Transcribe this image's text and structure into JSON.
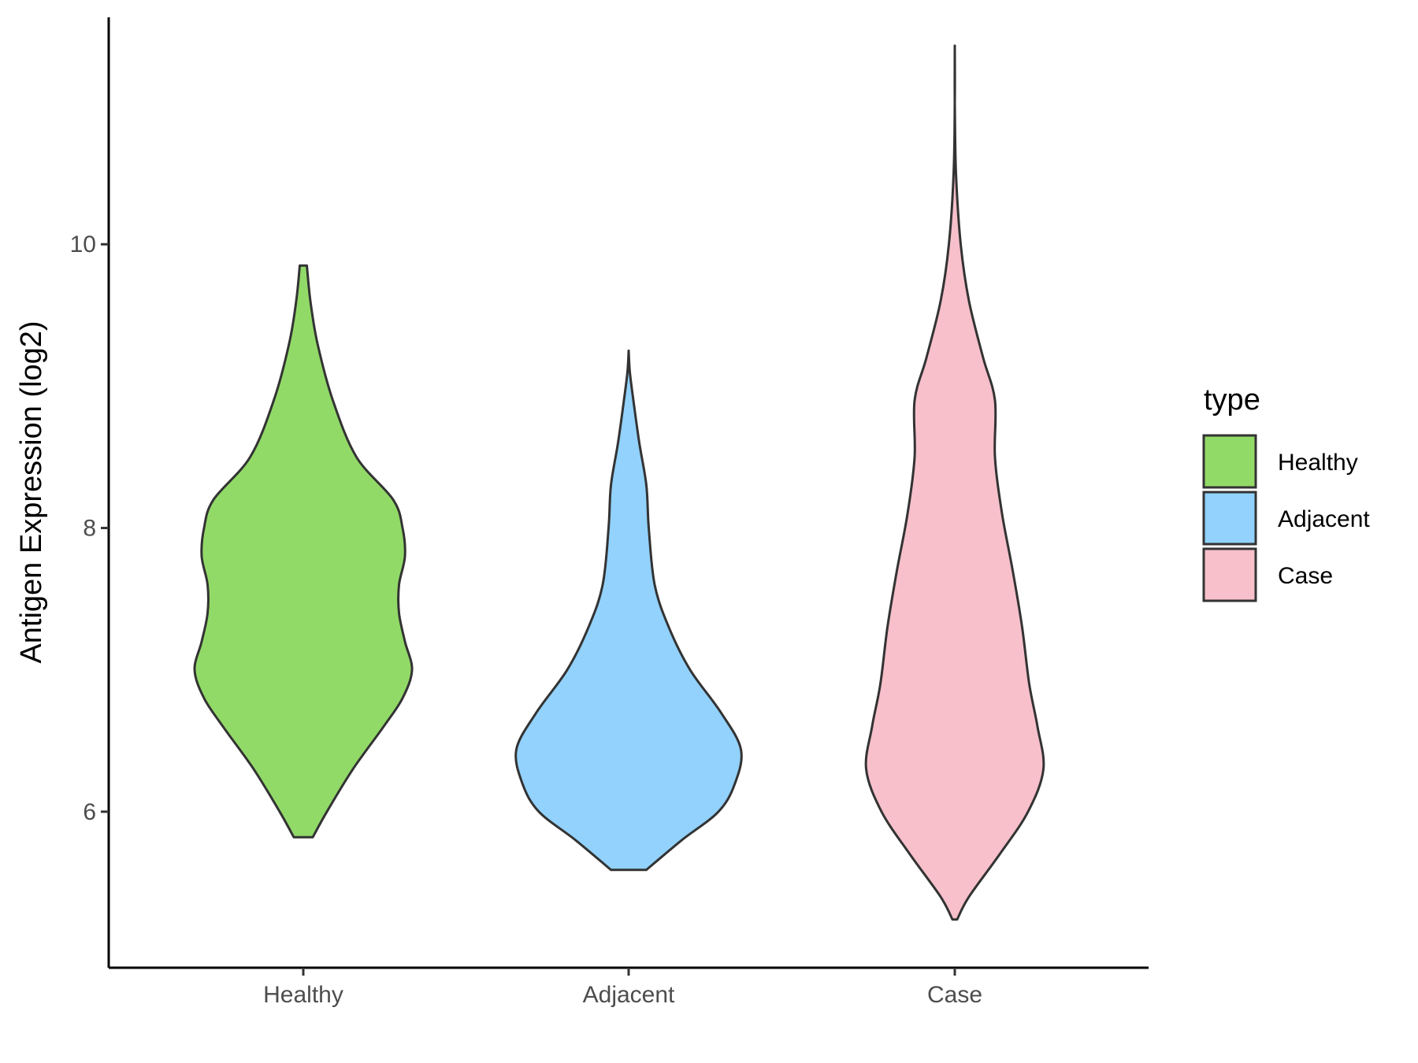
{
  "chart_data": {
    "type": "violin",
    "title": "",
    "xlabel": "",
    "ylabel": "Antigen Expression (log2)",
    "ylim": [
      4.9,
      11.6
    ],
    "yticks": [
      6,
      8,
      10
    ],
    "categories": [
      "Healthy",
      "Adjacent",
      "Case"
    ],
    "grid": false,
    "legend": {
      "title": "type",
      "position": "right",
      "entries": [
        "Healthy",
        "Adjacent",
        "Case"
      ]
    },
    "colors": {
      "Healthy": "#92DA68",
      "Adjacent": "#92D2FC",
      "Case": "#F7C0CB",
      "outline": "#333333"
    },
    "series": [
      {
        "name": "Healthy",
        "min": 5.82,
        "max": 9.85,
        "density_profile": [
          [
            5.82,
            0.08
          ],
          [
            6.0,
            0.2
          ],
          [
            6.3,
            0.42
          ],
          [
            6.6,
            0.68
          ],
          [
            6.8,
            0.84
          ],
          [
            7.0,
            0.92
          ],
          [
            7.2,
            0.86
          ],
          [
            7.4,
            0.81
          ],
          [
            7.6,
            0.81
          ],
          [
            7.8,
            0.86
          ],
          [
            8.0,
            0.84
          ],
          [
            8.2,
            0.76
          ],
          [
            8.5,
            0.45
          ],
          [
            8.9,
            0.25
          ],
          [
            9.3,
            0.12
          ],
          [
            9.6,
            0.06
          ],
          [
            9.85,
            0.03
          ]
        ]
      },
      {
        "name": "Adjacent",
        "min": 5.59,
        "max": 9.25,
        "density_profile": [
          [
            5.59,
            0.15
          ],
          [
            5.8,
            0.45
          ],
          [
            6.0,
            0.76
          ],
          [
            6.2,
            0.9
          ],
          [
            6.44,
            0.95
          ],
          [
            6.7,
            0.78
          ],
          [
            7.0,
            0.52
          ],
          [
            7.3,
            0.34
          ],
          [
            7.6,
            0.22
          ],
          [
            8.0,
            0.17
          ],
          [
            8.3,
            0.15
          ],
          [
            8.6,
            0.09
          ],
          [
            8.9,
            0.04
          ],
          [
            9.1,
            0.01
          ],
          [
            9.25,
            0.0
          ]
        ]
      },
      {
        "name": "Case",
        "min": 5.24,
        "max": 11.4,
        "density_profile": [
          [
            5.24,
            0.02
          ],
          [
            5.4,
            0.12
          ],
          [
            5.7,
            0.38
          ],
          [
            6.0,
            0.62
          ],
          [
            6.3,
            0.75
          ],
          [
            6.6,
            0.7
          ],
          [
            6.9,
            0.63
          ],
          [
            7.3,
            0.57
          ],
          [
            7.7,
            0.49
          ],
          [
            8.1,
            0.4
          ],
          [
            8.5,
            0.34
          ],
          [
            8.9,
            0.34
          ],
          [
            9.2,
            0.24
          ],
          [
            9.6,
            0.12
          ],
          [
            10.0,
            0.05
          ],
          [
            10.5,
            0.01
          ],
          [
            11.0,
            0.0
          ],
          [
            11.4,
            0.0
          ]
        ]
      }
    ]
  }
}
